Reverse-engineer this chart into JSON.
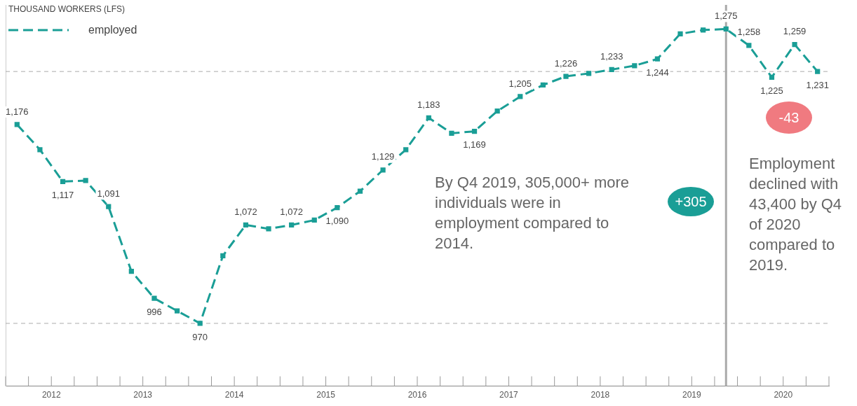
{
  "chart_data": {
    "type": "line",
    "ylabel": "THOUSAND WORKERS (LFS)",
    "x": [
      2012.125,
      2012.375,
      2012.625,
      2012.875,
      2013.125,
      2013.375,
      2013.625,
      2013.875,
      2014.125,
      2014.375,
      2014.625,
      2014.875,
      2015.125,
      2015.375,
      2015.625,
      2015.875,
      2016.125,
      2016.375,
      2016.625,
      2016.875,
      2017.125,
      2017.375,
      2017.625,
      2017.875,
      2018.125,
      2018.375,
      2018.625,
      2018.875,
      2019.125,
      2019.375,
      2019.625,
      2019.875,
      2020.125,
      2020.375,
      2020.625,
      2020.875
    ],
    "series": [
      {
        "name": "employed",
        "color": "#1a9e96",
        "values": [
          1176,
          1150,
          1117,
          1118,
          1091,
          1024,
          996,
          983,
          970,
          1040,
          1072,
          1068,
          1072,
          1077,
          1090,
          1107,
          1129,
          1150,
          1183,
          1167,
          1169,
          1190,
          1205,
          1217,
          1226,
          1229,
          1233,
          1237,
          1244,
          1270,
          1274,
          1275,
          1258,
          1225,
          1259,
          1231
        ],
        "value_labels": [
          "1,176",
          null,
          "1,117",
          null,
          "1,091",
          null,
          "996",
          null,
          "970",
          null,
          "1,072",
          null,
          "1,072",
          null,
          "1,090",
          null,
          "1,129",
          null,
          "1,183",
          null,
          "1,169",
          null,
          "1,205",
          null,
          "1,226",
          null,
          "1,233",
          null,
          "1,244",
          null,
          null,
          "1,275",
          "1,258",
          "1,225",
          "1,259",
          "1,231"
        ]
      }
    ],
    "xlim": [
      2012,
      2021
    ],
    "ylim": [
      905,
      1300
    ],
    "xticks": [
      {
        "value": 2012,
        "label": null
      },
      {
        "value": 2012.25,
        "label": null
      },
      {
        "value": 2012.5,
        "label": "2012"
      },
      {
        "value": 2012.75,
        "label": null
      },
      {
        "value": 2013,
        "label": null
      },
      {
        "value": 2013.25,
        "label": null
      },
      {
        "value": 2013.5,
        "label": "2013"
      },
      {
        "value": 2013.75,
        "label": null
      },
      {
        "value": 2014,
        "label": null
      },
      {
        "value": 2014.25,
        "label": null
      },
      {
        "value": 2014.5,
        "label": "2014"
      },
      {
        "value": 2014.75,
        "label": null
      },
      {
        "value": 2015,
        "label": null
      },
      {
        "value": 2015.25,
        "label": null
      },
      {
        "value": 2015.5,
        "label": "2015"
      },
      {
        "value": 2015.75,
        "label": null
      },
      {
        "value": 2016,
        "label": null
      },
      {
        "value": 2016.25,
        "label": null
      },
      {
        "value": 2016.5,
        "label": "2016"
      },
      {
        "value": 2016.75,
        "label": null
      },
      {
        "value": 2017,
        "label": null
      },
      {
        "value": 2017.25,
        "label": null
      },
      {
        "value": 2017.5,
        "label": "2017"
      },
      {
        "value": 2017.75,
        "label": null
      },
      {
        "value": 2018,
        "label": null
      },
      {
        "value": 2018.25,
        "label": null
      },
      {
        "value": 2018.5,
        "label": "2018"
      },
      {
        "value": 2018.75,
        "label": null
      },
      {
        "value": 2019,
        "label": null
      },
      {
        "value": 2019.25,
        "label": null
      },
      {
        "value": 2019.5,
        "label": "2019"
      },
      {
        "value": 2019.75,
        "label": null
      },
      {
        "value": 2020,
        "label": null
      },
      {
        "value": 2020.25,
        "label": null
      },
      {
        "value": 2020.5,
        "label": "2020"
      },
      {
        "value": 2020.75,
        "label": null
      },
      {
        "value": 2021,
        "label": null
      }
    ],
    "tick_labels": "x",
    "grid": false,
    "legend": "top left",
    "marker": "square",
    "line_style": "dashed",
    "ref_lines": [
      {
        "axis": "y",
        "value": 970,
        "color": "#aaaaaa",
        "line_style": "dashed"
      },
      {
        "axis": "y",
        "value": 1231,
        "color": "#aaaaaa",
        "line_style": "dashed"
      },
      {
        "axis": "x",
        "value": 2019.875,
        "color": "#aaaaaa",
        "line_style": "solid"
      }
    ],
    "annotations": [
      "By Q4 2019, 305,000+ more individuals were in employment compared to 2014.",
      "+305",
      "-43",
      "Employment declined with 43,400 by Q4 of 2020 compared to 2019."
    ]
  }
}
